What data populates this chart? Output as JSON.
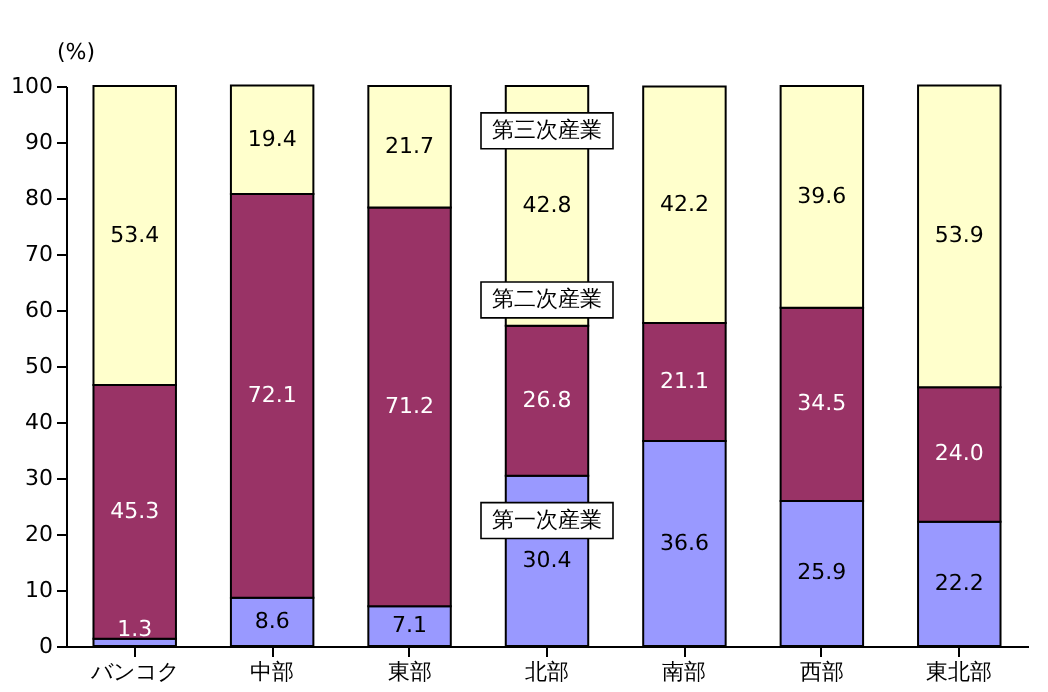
{
  "chart_data": {
    "type": "bar",
    "stacked": true,
    "ylabel": "(%)",
    "categories": [
      "バンコク",
      "中部",
      "東部",
      "北部",
      "南部",
      "西部",
      "東北部"
    ],
    "series": [
      {
        "name": "第一次産業",
        "color": "#9999ff",
        "values": [
          1.3,
          8.6,
          7.1,
          30.4,
          36.6,
          25.9,
          22.2
        ],
        "value_labels": [
          "1.3",
          "8.6",
          "7.1",
          "30.4",
          "36.6",
          "25.9",
          "22.2"
        ]
      },
      {
        "name": "第二次産業",
        "color": "#993366",
        "values": [
          45.3,
          72.1,
          71.2,
          26.8,
          21.1,
          34.5,
          24.0
        ],
        "value_labels": [
          "45.3",
          "72.1",
          "71.2",
          "26.8",
          "21.1",
          "34.5",
          "24.0"
        ]
      },
      {
        "name": "第三次産業",
        "color": "#ffffcc",
        "values": [
          53.4,
          19.4,
          21.7,
          42.8,
          42.2,
          39.6,
          53.9
        ],
        "value_labels": [
          "53.4",
          "19.4",
          "21.7",
          "42.8",
          "42.2",
          "39.6",
          "53.9"
        ]
      }
    ],
    "ylim": [
      0,
      100
    ],
    "yticks": [
      0,
      10,
      20,
      30,
      40,
      50,
      60,
      70,
      80,
      90,
      100
    ],
    "grid": false,
    "legend": false
  }
}
